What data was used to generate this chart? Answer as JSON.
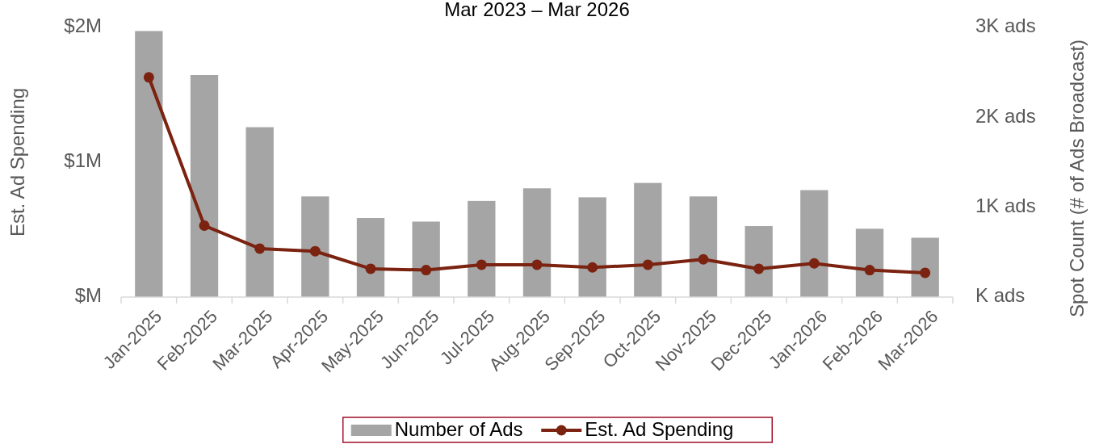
{
  "chart_data": {
    "type": "bar",
    "title": "Mar 2023 – Mar 2026",
    "ylabel": "Est. Ad Spending",
    "y2label": "Spot Count (# of Ads Broadcast)",
    "categories": [
      "Jan-2025",
      "Feb-2025",
      "Mar-2025",
      "Apr-2025",
      "May-2025",
      "Jun-2025",
      "Jul-2025",
      "Aug-2025",
      "Sep-2025",
      "Oct-2025",
      "Nov-2025",
      "Dec-2025",
      "Jan-2026",
      "Feb-2026",
      "Mar-2026"
    ],
    "series": [
      {
        "name": "Number of Ads",
        "axis": "y2",
        "color": "#a5a5a5",
        "values": [
          2960,
          2470,
          1890,
          1120,
          880,
          840,
          1070,
          1210,
          1110,
          1270,
          1120,
          790,
          1190,
          760,
          660
        ]
      },
      {
        "name": "Est. Ad Spending",
        "type": "line",
        "axis": "y",
        "color": "#7b2210",
        "marker": "circle",
        "values": [
          1.63,
          0.53,
          0.36,
          0.34,
          0.21,
          0.2,
          0.24,
          0.24,
          0.22,
          0.24,
          0.28,
          0.21,
          0.25,
          0.2,
          0.18
        ]
      }
    ],
    "ylim": [
      0,
      2
    ],
    "yticks": [
      {
        "value": 0,
        "label": "$M"
      },
      {
        "value": 1,
        "label": "$1M"
      },
      {
        "value": 2,
        "label": "$2M"
      }
    ],
    "y2lim": [
      0,
      3000
    ],
    "y2ticks": [
      {
        "value": 0,
        "label": "K ads"
      },
      {
        "value": 1000,
        "label": "1K ads"
      },
      {
        "value": 2000,
        "label": "2K ads"
      },
      {
        "value": 3000,
        "label": "3K ads"
      }
    ],
    "grid": false,
    "legend": "bottom"
  }
}
